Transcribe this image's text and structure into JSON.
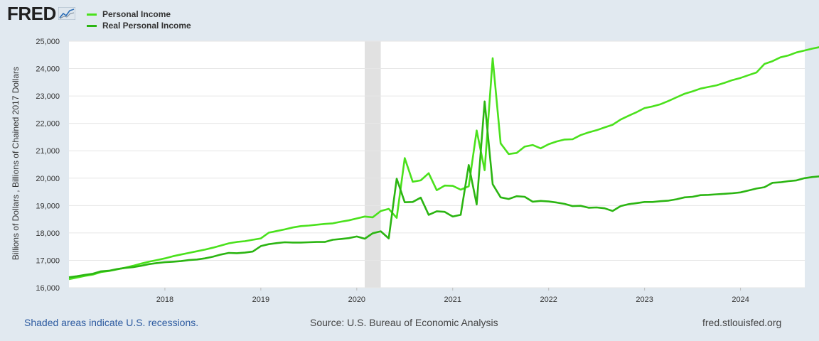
{
  "header": {
    "logo_text": "FRED",
    "logo_mark": "®",
    "logo_icon": "line-graph-icon"
  },
  "legend": [
    {
      "label": "Personal Income",
      "color": "#4ae11c"
    },
    {
      "label": "Real Personal Income",
      "color": "#2bb512"
    }
  ],
  "footer": {
    "recession_note": "Shaded areas indicate U.S. recessions.",
    "source": "Source: U.S. Bureau of Economic Analysis",
    "site": "fred.stlouisfed.org"
  },
  "chart_data": {
    "type": "line",
    "title": "",
    "xlabel": "",
    "ylabel": "Billions of Dollars , Billions of Chained 2017 Dollars",
    "xlim": [
      2017.0,
      2024.67
    ],
    "ylim": [
      16000,
      25000
    ],
    "yticks": [
      16000,
      17000,
      18000,
      19000,
      20000,
      21000,
      22000,
      23000,
      24000,
      25000
    ],
    "ytick_labels": [
      "16,000",
      "17,000",
      "18,000",
      "19,000",
      "20,000",
      "21,000",
      "22,000",
      "23,000",
      "24,000",
      "25,000"
    ],
    "xticks": [
      2018,
      2019,
      2020,
      2021,
      2022,
      2023,
      2024
    ],
    "xtick_labels": [
      "2018",
      "2019",
      "2020",
      "2021",
      "2022",
      "2023",
      "2024"
    ],
    "recession": [
      2020.083,
      2020.25
    ],
    "grid": true,
    "series": [
      {
        "name": "Personal Income",
        "color": "#4ae11c",
        "start": "2017-01",
        "step_months": 1,
        "values": [
          16310,
          16370,
          16430,
          16480,
          16570,
          16610,
          16670,
          16730,
          16800,
          16880,
          16950,
          17010,
          17070,
          17150,
          17210,
          17270,
          17330,
          17390,
          17460,
          17540,
          17620,
          17670,
          17700,
          17750,
          17800,
          18010,
          18070,
          18130,
          18200,
          18250,
          18270,
          18300,
          18330,
          18350,
          18410,
          18460,
          18530,
          18600,
          18570,
          18800,
          18880,
          18550,
          20730,
          19870,
          19920,
          20180,
          19560,
          19730,
          19720,
          19580,
          19700,
          21740,
          20290,
          24380,
          21270,
          20880,
          20920,
          21150,
          21210,
          21090,
          21240,
          21340,
          21410,
          21420,
          21570,
          21670,
          21750,
          21850,
          21950,
          22140,
          22280,
          22410,
          22560,
          22620,
          22700,
          22820,
          22950,
          23080,
          23170,
          23270,
          23330,
          23390,
          23480,
          23580,
          23660,
          23760,
          23860,
          24170,
          24270,
          24410,
          24480,
          24590,
          24660,
          24730,
          24790
        ]
      },
      {
        "name": "Real Personal Income",
        "color": "#2bb512",
        "start": "2017-01",
        "step_months": 1,
        "values": [
          16380,
          16420,
          16470,
          16510,
          16600,
          16620,
          16680,
          16720,
          16750,
          16800,
          16860,
          16900,
          16930,
          16950,
          16970,
          17010,
          17030,
          17070,
          17130,
          17210,
          17270,
          17260,
          17280,
          17320,
          17520,
          17590,
          17630,
          17660,
          17650,
          17650,
          17660,
          17670,
          17670,
          17750,
          17780,
          17810,
          17870,
          17790,
          17990,
          18060,
          17800,
          19980,
          19120,
          19130,
          19290,
          18660,
          18790,
          18770,
          18600,
          18660,
          20480,
          19040,
          22800,
          19780,
          19300,
          19240,
          19340,
          19320,
          19140,
          19170,
          19150,
          19110,
          19060,
          18980,
          18990,
          18920,
          18930,
          18900,
          18800,
          18980,
          19050,
          19090,
          19130,
          19130,
          19160,
          19180,
          19230,
          19300,
          19320,
          19380,
          19390,
          19410,
          19430,
          19450,
          19480,
          19550,
          19620,
          19670,
          19830,
          19850,
          19890,
          19920,
          20000,
          20040,
          20070
        ]
      }
    ]
  }
}
